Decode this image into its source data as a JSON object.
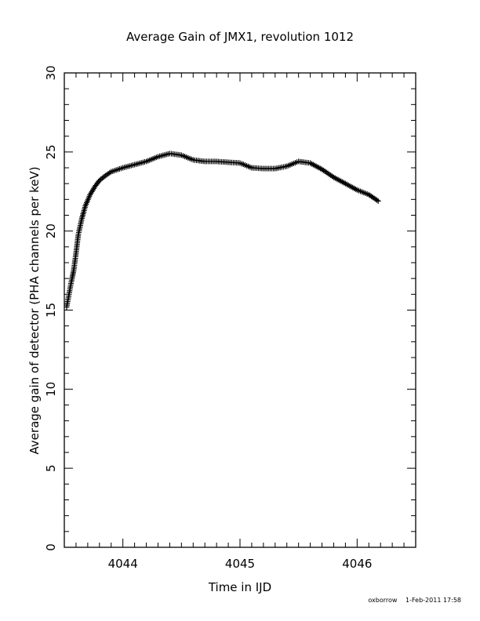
{
  "chart_data": {
    "type": "scatter",
    "title": "Average Gain of JMX1, revolution 1012",
    "xlabel": "Time in IJD",
    "ylabel": "Average gain of detector (PHA channels per keV)",
    "xlim": [
      4043.5,
      4046.5
    ],
    "ylim": [
      0,
      30
    ],
    "x_ticks": [
      4044,
      4045,
      4046
    ],
    "y_ticks": [
      0,
      5,
      10,
      15,
      20,
      25,
      30
    ],
    "grid": false,
    "marker": "plus",
    "series": [
      {
        "x": [
          4043.52,
          4043.54,
          4043.56,
          4043.58,
          4043.6,
          4043.62,
          4043.65,
          4043.68,
          4043.72,
          4043.76,
          4043.8,
          4043.85,
          4043.9,
          4044.0,
          4044.1,
          4044.2,
          4044.3,
          4044.4,
          4044.5,
          4044.6,
          4044.7,
          4044.8,
          4044.9,
          4045.0,
          4045.1,
          4045.2,
          4045.3,
          4045.4,
          4045.5,
          4045.6,
          4045.7,
          4045.8,
          4045.9,
          4046.0,
          4046.1,
          4046.18
        ],
        "y": [
          15.2,
          16.0,
          16.8,
          17.5,
          18.6,
          19.8,
          20.8,
          21.6,
          22.3,
          22.8,
          23.2,
          23.5,
          23.75,
          24.0,
          24.2,
          24.4,
          24.7,
          24.9,
          24.8,
          24.5,
          24.4,
          24.4,
          24.35,
          24.3,
          24.0,
          23.95,
          23.95,
          24.1,
          24.4,
          24.3,
          23.9,
          23.4,
          23.0,
          22.6,
          22.3,
          21.9
        ]
      }
    ]
  },
  "footer": {
    "user": "oxborrow",
    "date": "1-Feb-2011 17:58"
  }
}
